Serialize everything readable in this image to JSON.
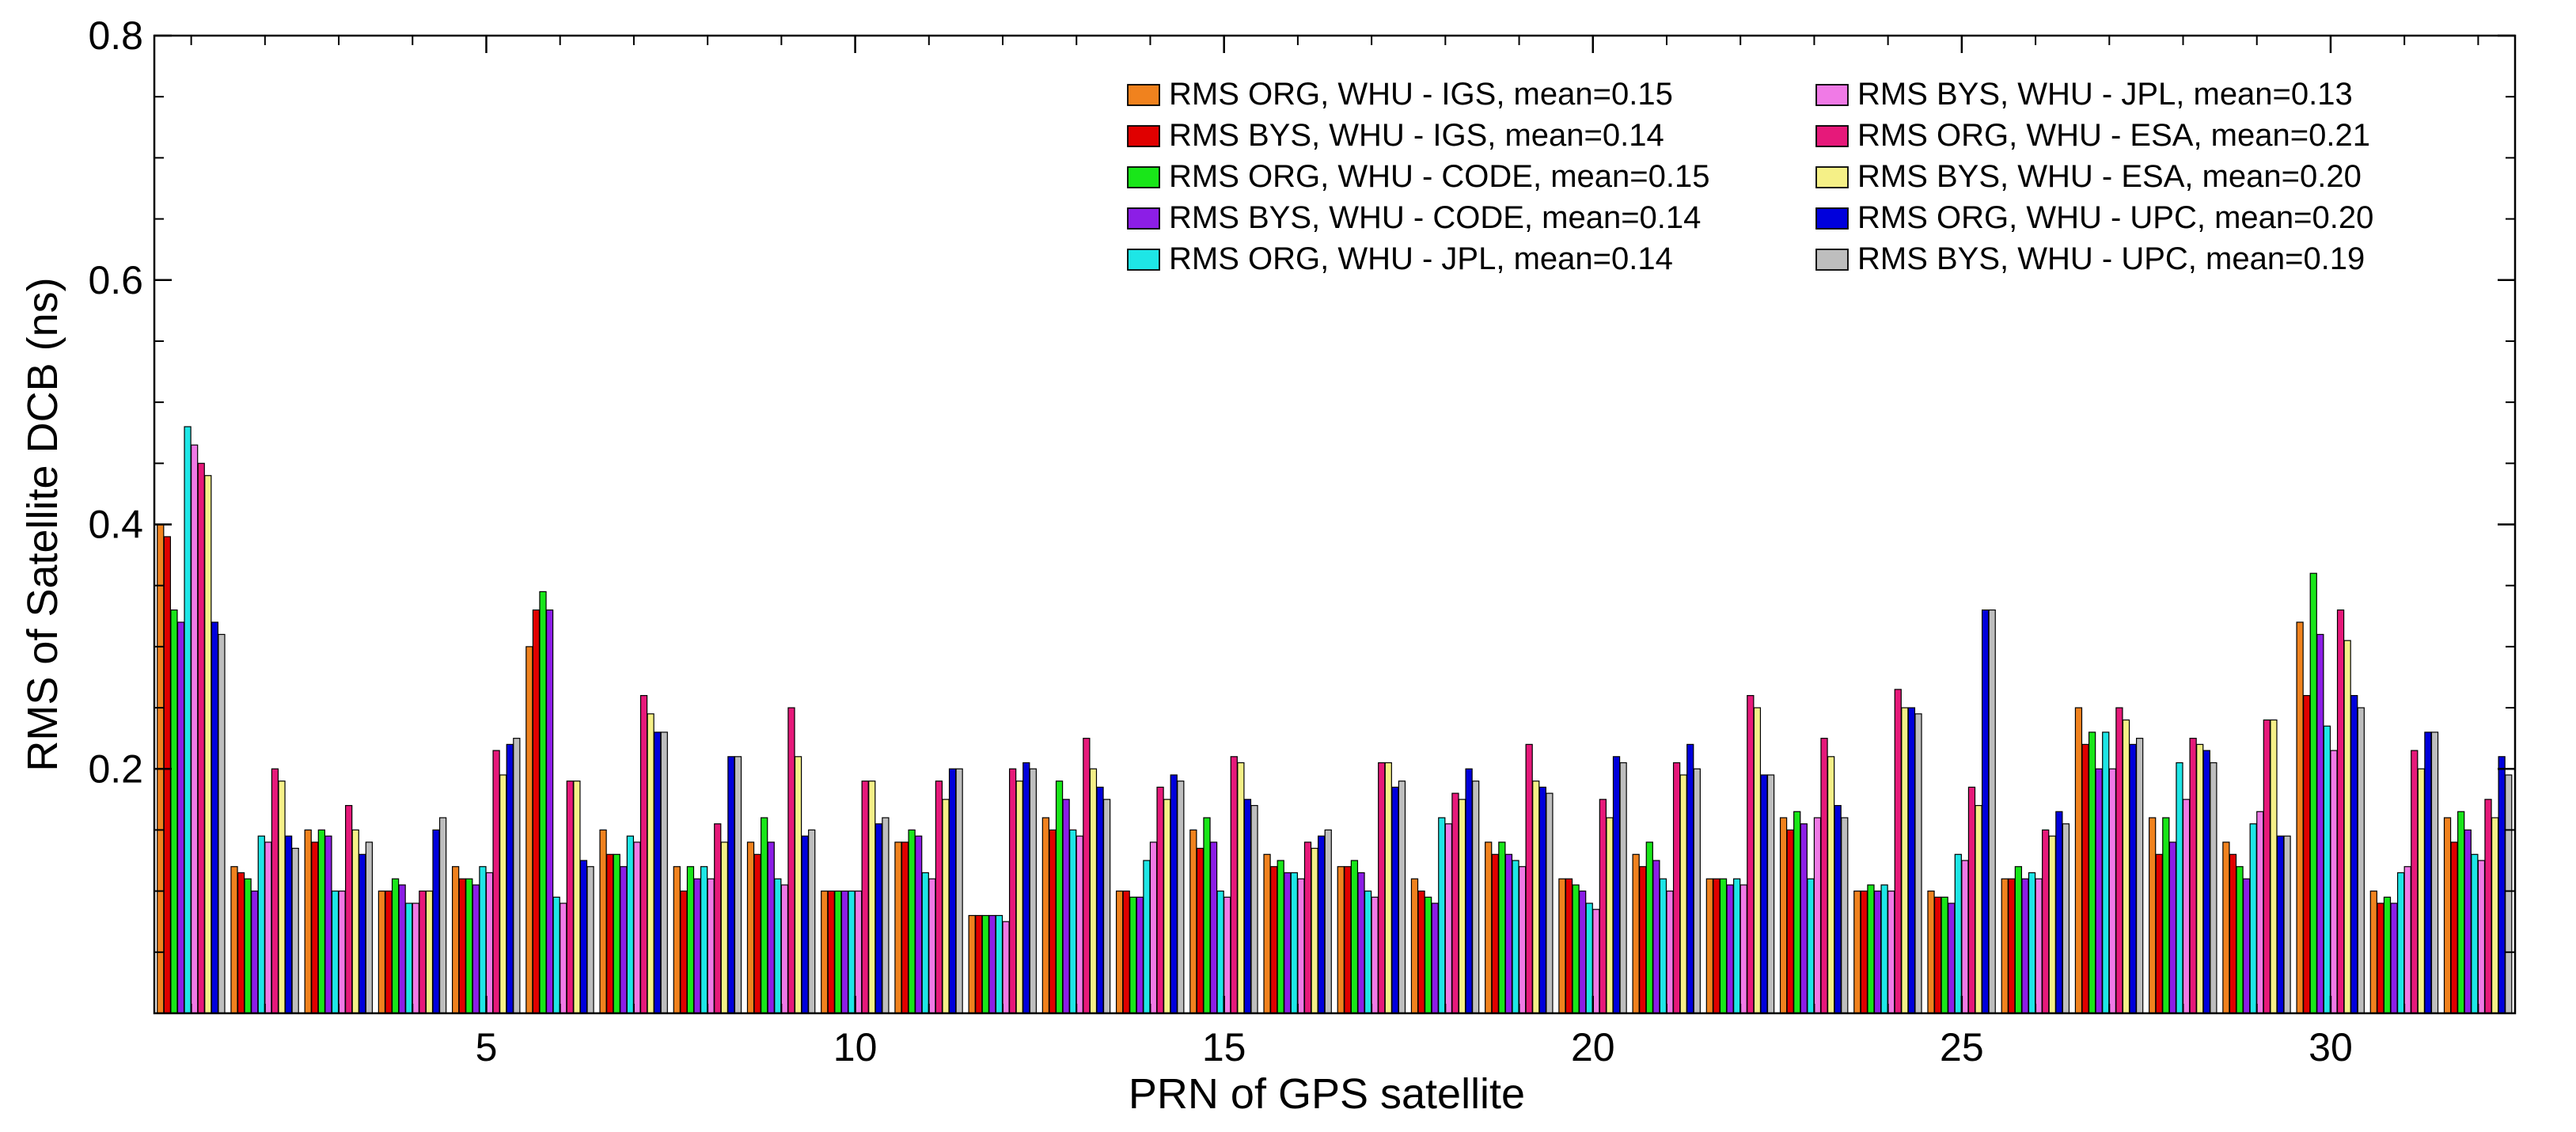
{
  "chart_data": {
    "type": "bar",
    "title": "",
    "xlabel": "PRN of GPS satellite",
    "ylabel": "RMS of Satellite DCB (ns)",
    "ylim": [
      0,
      0.8
    ],
    "yticks": [
      0.2,
      0.4,
      0.6,
      0.8
    ],
    "ytick_labels": [
      "0.2",
      "0.4",
      "0.6",
      "0.8"
    ],
    "xticks": [
      5,
      10,
      15,
      20,
      25,
      30
    ],
    "xtick_labels": [
      "5",
      "10",
      "15",
      "20",
      "25",
      "30"
    ],
    "grid": false,
    "legend_position": "top-right",
    "categories": [
      1,
      2,
      3,
      4,
      5,
      6,
      7,
      8,
      9,
      10,
      11,
      12,
      13,
      14,
      15,
      16,
      17,
      18,
      19,
      20,
      21,
      22,
      23,
      24,
      25,
      26,
      27,
      28,
      29,
      30,
      31,
      32
    ],
    "series": [
      {
        "name": "RMS ORG, WHU - IGS, mean=0.15",
        "color": "#f0821e",
        "values": [
          0.4,
          0.12,
          0.15,
          0.1,
          0.12,
          0.3,
          0.15,
          0.12,
          0.14,
          0.1,
          0.14,
          0.08,
          0.16,
          0.1,
          0.15,
          0.13,
          0.12,
          0.11,
          0.14,
          0.11,
          0.13,
          0.11,
          0.16,
          0.1,
          0.1,
          0.11,
          0.25,
          0.16,
          0.14,
          0.32,
          0.1,
          0.16
        ]
      },
      {
        "name": "RMS BYS, WHU - IGS, mean=0.14",
        "color": "#e00000",
        "values": [
          0.39,
          0.115,
          0.14,
          0.1,
          0.11,
          0.33,
          0.13,
          0.1,
          0.13,
          0.1,
          0.14,
          0.08,
          0.15,
          0.1,
          0.135,
          0.12,
          0.12,
          0.1,
          0.13,
          0.11,
          0.12,
          0.11,
          0.15,
          0.1,
          0.095,
          0.11,
          0.22,
          0.13,
          0.13,
          0.26,
          0.09,
          0.14
        ]
      },
      {
        "name": "RMS ORG, WHU - CODE, mean=0.15",
        "color": "#19e619",
        "values": [
          0.33,
          0.11,
          0.15,
          0.11,
          0.11,
          0.345,
          0.13,
          0.12,
          0.16,
          0.1,
          0.15,
          0.08,
          0.19,
          0.095,
          0.16,
          0.125,
          0.125,
          0.095,
          0.14,
          0.105,
          0.14,
          0.11,
          0.165,
          0.105,
          0.095,
          0.12,
          0.23,
          0.16,
          0.12,
          0.36,
          0.095,
          0.165
        ]
      },
      {
        "name": "RMS BYS, WHU - CODE, mean=0.14",
        "color": "#8c1ee6",
        "values": [
          0.32,
          0.1,
          0.145,
          0.105,
          0.105,
          0.33,
          0.12,
          0.11,
          0.14,
          0.1,
          0.145,
          0.08,
          0.175,
          0.095,
          0.14,
          0.115,
          0.115,
          0.09,
          0.13,
          0.1,
          0.125,
          0.105,
          0.155,
          0.1,
          0.09,
          0.11,
          0.2,
          0.14,
          0.11,
          0.31,
          0.09,
          0.15
        ]
      },
      {
        "name": "RMS ORG, WHU - JPL, mean=0.14",
        "color": "#1ee6e6",
        "values": [
          0.48,
          0.145,
          0.1,
          0.09,
          0.12,
          0.095,
          0.145,
          0.12,
          0.11,
          0.1,
          0.115,
          0.08,
          0.15,
          0.125,
          0.1,
          0.115,
          0.1,
          0.16,
          0.125,
          0.09,
          0.11,
          0.11,
          0.11,
          0.105,
          0.13,
          0.115,
          0.23,
          0.205,
          0.155,
          0.235,
          0.115,
          0.13
        ]
      },
      {
        "name": "RMS BYS, WHU - JPL, mean=0.13",
        "color": "#f07ae6",
        "values": [
          0.465,
          0.14,
          0.1,
          0.09,
          0.115,
          0.09,
          0.14,
          0.11,
          0.105,
          0.1,
          0.11,
          0.075,
          0.145,
          0.14,
          0.095,
          0.11,
          0.095,
          0.155,
          0.12,
          0.085,
          0.1,
          0.105,
          0.16,
          0.1,
          0.125,
          0.11,
          0.2,
          0.175,
          0.165,
          0.215,
          0.12,
          0.125
        ]
      },
      {
        "name": "RMS ORG, WHU - ESA, mean=0.21",
        "color": "#e6197a",
        "values": [
          0.45,
          0.2,
          0.17,
          0.1,
          0.215,
          0.19,
          0.26,
          0.155,
          0.25,
          0.19,
          0.19,
          0.2,
          0.225,
          0.185,
          0.21,
          0.14,
          0.205,
          0.18,
          0.22,
          0.175,
          0.205,
          0.26,
          0.225,
          0.265,
          0.185,
          0.15,
          0.25,
          0.225,
          0.24,
          0.33,
          0.215,
          0.175
        ]
      },
      {
        "name": "RMS BYS, WHU - ESA, mean=0.20",
        "color": "#f5f087",
        "values": [
          0.44,
          0.19,
          0.15,
          0.1,
          0.195,
          0.19,
          0.245,
          0.14,
          0.21,
          0.19,
          0.175,
          0.19,
          0.2,
          0.175,
          0.205,
          0.135,
          0.205,
          0.175,
          0.19,
          0.16,
          0.195,
          0.25,
          0.21,
          0.25,
          0.17,
          0.145,
          0.24,
          0.22,
          0.24,
          0.305,
          0.2,
          0.16
        ]
      },
      {
        "name": "RMS ORG, WHU - UPC, mean=0.20",
        "color": "#0000dc",
        "values": [
          0.32,
          0.145,
          0.13,
          0.15,
          0.22,
          0.125,
          0.23,
          0.21,
          0.145,
          0.155,
          0.2,
          0.205,
          0.185,
          0.195,
          0.175,
          0.145,
          0.185,
          0.2,
          0.185,
          0.21,
          0.22,
          0.195,
          0.17,
          0.25,
          0.33,
          0.165,
          0.22,
          0.215,
          0.145,
          0.26,
          0.23,
          0.21
        ]
      },
      {
        "name": "RMS BYS, WHU - UPC, mean=0.19",
        "color": "#bebebe",
        "values": [
          0.31,
          0.135,
          0.14,
          0.16,
          0.225,
          0.12,
          0.23,
          0.21,
          0.15,
          0.16,
          0.2,
          0.2,
          0.175,
          0.19,
          0.17,
          0.15,
          0.19,
          0.19,
          0.18,
          0.205,
          0.2,
          0.195,
          0.16,
          0.245,
          0.33,
          0.155,
          0.225,
          0.205,
          0.145,
          0.25,
          0.23,
          0.195
        ]
      }
    ]
  }
}
